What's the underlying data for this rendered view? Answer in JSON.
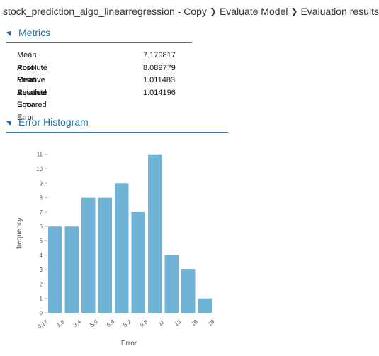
{
  "breadcrumb": {
    "items": [
      "stock_prediction_algo_linearregression - Copy",
      "Evaluate Model",
      "Evaluation results"
    ]
  },
  "metrics_section": {
    "title": "Metrics",
    "rows": [
      {
        "label": "Mean Absolute Error",
        "value": "7.179817"
      },
      {
        "label": "Root Mean Squared Error",
        "value": "8.089779"
      },
      {
        "label": "Relative Absolute Error",
        "value": "1.011483"
      },
      {
        "label": "Relative Squared Error",
        "value": "1.014196"
      }
    ]
  },
  "histogram_section": {
    "title": "Error Histogram"
  },
  "chart_data": {
    "type": "bar",
    "xlabel": "Error",
    "ylabel": "frequency",
    "x_tick_labels": [
      "0.17",
      "1.8",
      "3.4",
      "5.0",
      "6.6",
      "8.2",
      "9.8",
      "11",
      "13",
      "15",
      "16"
    ],
    "y_tick_labels": [
      "0",
      "1",
      "2",
      "3",
      "4",
      "5",
      "6",
      "7",
      "8",
      "9",
      "10",
      "11"
    ],
    "values": [
      6,
      6,
      8,
      8,
      9,
      7,
      11,
      4,
      3,
      1
    ],
    "ylim": [
      0,
      11
    ],
    "bar_color": "#6fb3d6"
  },
  "colors": {
    "accent": "#1f6fa8",
    "rule": "#2a7ab0"
  }
}
